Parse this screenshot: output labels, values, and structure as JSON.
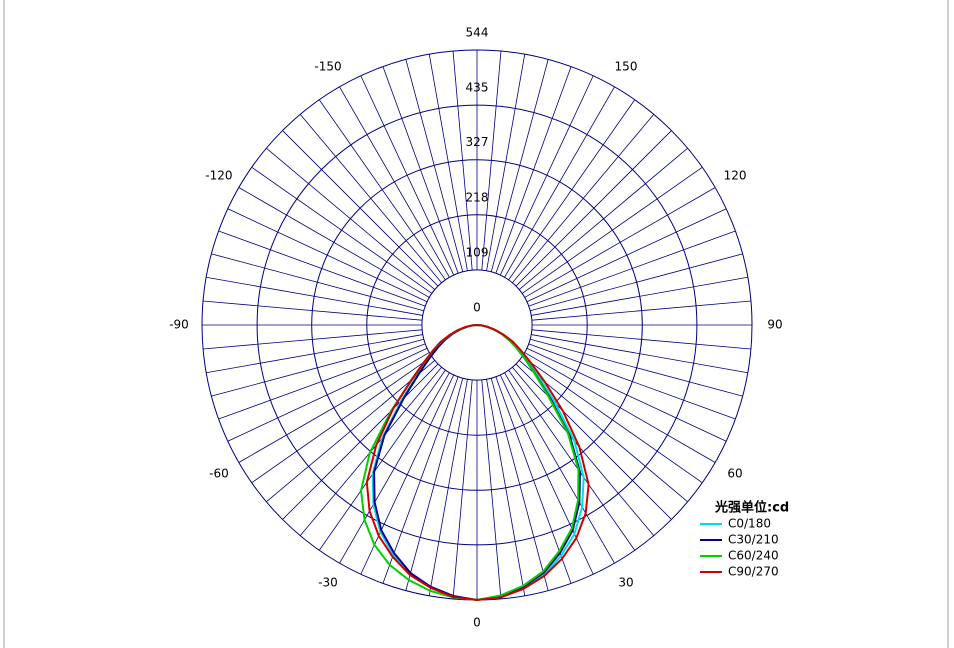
{
  "chart_data": {
    "type": "polar",
    "legend_title": "光强单位:cd",
    "x": [
      -90,
      -85,
      -80,
      -75,
      -70,
      -65,
      -60,
      -55,
      -50,
      -45,
      -40,
      -35,
      -30,
      -25,
      -20,
      -15,
      -10,
      -5,
      0,
      5,
      10,
      15,
      20,
      25,
      30,
      35,
      40,
      45,
      50,
      55,
      60,
      65,
      70,
      75,
      80,
      85,
      90
    ],
    "xticks": [
      -150,
      -120,
      -90,
      -60,
      -30,
      0,
      30,
      60,
      90,
      120,
      150
    ],
    "ylim": [
      0,
      544
    ],
    "yticks": [
      0,
      109,
      218,
      327,
      435,
      544
    ],
    "series": [
      {
        "name": "C0/180",
        "color": "#00e0e0",
        "values": [
          0,
          9,
          20,
          36,
          53,
          72,
          92,
          118,
          155,
          212,
          292,
          360,
          410,
          452,
          484,
          510,
          527,
          539,
          544,
          540,
          529,
          512,
          486,
          456,
          416,
          368,
          300,
          220,
          160,
          120,
          92,
          72,
          54,
          36,
          21,
          9,
          0
        ]
      },
      {
        "name": "C30/210",
        "color": "#000090",
        "values": [
          0,
          9,
          20,
          35,
          52,
          70,
          90,
          115,
          150,
          205,
          285,
          355,
          405,
          448,
          480,
          508,
          526,
          538,
          544,
          538,
          526,
          508,
          480,
          448,
          405,
          355,
          285,
          205,
          150,
          115,
          90,
          70,
          52,
          35,
          20,
          9,
          0
        ]
      },
      {
        "name": "C60/240",
        "color": "#00d000",
        "values": [
          0,
          10,
          22,
          38,
          56,
          78,
          100,
          125,
          168,
          240,
          330,
          400,
          445,
          480,
          505,
          522,
          534,
          541,
          544,
          537,
          524,
          505,
          476,
          444,
          400,
          350,
          280,
          200,
          148,
          115,
          90,
          70,
          52,
          35,
          20,
          9,
          0
        ]
      },
      {
        "name": "C90/270",
        "color": "#d00000",
        "values": [
          0,
          10,
          24,
          40,
          58,
          80,
          100,
          128,
          170,
          235,
          310,
          380,
          425,
          460,
          488,
          512,
          528,
          540,
          544,
          541,
          530,
          514,
          492,
          465,
          430,
          385,
          315,
          240,
          175,
          130,
          100,
          78,
          56,
          38,
          22,
          10,
          0
        ]
      }
    ]
  }
}
